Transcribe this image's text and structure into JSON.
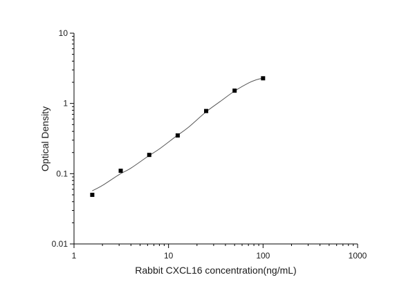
{
  "chart_data": {
    "type": "scatter",
    "xlabel": "Rabbit CXCL16 concentration(ng/mL)",
    "ylabel": "Optical Density",
    "x_scale": "log",
    "y_scale": "log",
    "xlim": [
      1,
      1000
    ],
    "ylim": [
      0.01,
      10
    ],
    "x_ticks": [
      "1",
      "10",
      "100",
      "1000"
    ],
    "y_ticks": [
      "0.01",
      "0.1",
      "1",
      "10"
    ],
    "grid": false,
    "legend": "none",
    "series": [
      {
        "x": [
          1.56,
          3.12,
          6.25,
          12.5,
          25,
          50,
          100
        ],
        "y": [
          0.05,
          0.11,
          0.185,
          0.35,
          0.78,
          1.52,
          2.28
        ]
      }
    ],
    "fit_curve": {
      "x": [
        1.56,
        2,
        3,
        4,
        6,
        8,
        12,
        16,
        25,
        35,
        50,
        70,
        85,
        100
      ],
      "y": [
        0.057,
        0.068,
        0.097,
        0.12,
        0.175,
        0.225,
        0.34,
        0.45,
        0.76,
        1.06,
        1.5,
        1.95,
        2.17,
        2.3
      ]
    },
    "marker_color": "#000000",
    "line_color": "#555555"
  }
}
